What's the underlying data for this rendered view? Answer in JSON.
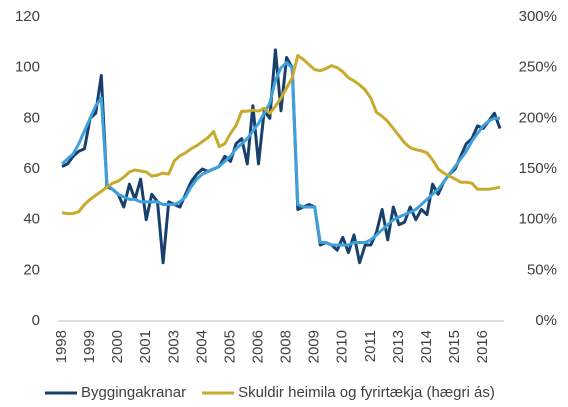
{
  "chart_data": {
    "type": "line",
    "categories": [
      "1998",
      null,
      null,
      null,
      null,
      "1999",
      null,
      null,
      null,
      null,
      "2000",
      null,
      null,
      null,
      null,
      "2001",
      null,
      null,
      null,
      null,
      "2003",
      null,
      null,
      null,
      null,
      "2004",
      null,
      null,
      null,
      null,
      "2005",
      null,
      null,
      null,
      null,
      "2006",
      null,
      null,
      null,
      null,
      "2008",
      null,
      null,
      null,
      null,
      "2009",
      null,
      null,
      null,
      null,
      "2010",
      null,
      null,
      null,
      null,
      "2011",
      null,
      null,
      null,
      null,
      "2013",
      null,
      null,
      null,
      null,
      "2014",
      null,
      null,
      null,
      null,
      "2015",
      null,
      null,
      null,
      null,
      "2016",
      null,
      null,
      null
    ],
    "series": [
      {
        "name": "Byggingakranar",
        "color": "#17406d",
        "values": [
          61,
          62,
          65,
          67,
          68,
          80,
          82,
          97,
          53,
          52,
          50,
          45,
          54,
          48,
          56,
          40,
          50,
          47,
          23,
          47,
          46,
          45,
          50,
          55,
          58,
          60,
          59,
          60,
          61,
          65,
          63,
          70,
          72,
          62,
          85,
          62,
          83,
          80,
          107,
          83,
          104,
          100,
          44,
          45,
          46,
          45,
          30,
          31,
          30,
          28,
          33,
          27,
          34,
          23,
          30,
          30,
          35,
          44,
          32,
          45,
          38,
          39,
          45,
          40,
          44,
          42,
          54,
          50,
          55,
          58,
          60,
          65,
          70,
          72,
          77,
          76,
          79,
          82,
          76
        ]
      },
      {
        "color": "#3fa0db",
        "values": [
          62,
          64,
          66,
          70,
          75,
          80,
          85,
          88,
          54,
          52,
          50,
          49,
          48,
          48,
          47,
          47,
          47,
          47,
          46,
          46,
          46,
          47,
          49,
          53,
          56,
          58,
          59,
          60,
          61,
          63,
          65,
          68,
          70,
          72,
          75,
          78,
          82,
          86,
          95,
          100,
          102,
          100,
          46,
          45,
          45,
          45,
          31,
          31,
          30,
          30,
          30,
          30,
          31,
          31,
          31,
          32,
          34,
          36,
          38,
          40,
          41,
          42,
          43,
          44,
          46,
          48,
          50,
          52,
          55,
          58,
          61,
          64,
          67,
          71,
          74,
          77,
          79,
          80,
          80
        ]
      },
      {
        "name": "Skuldir heimila og fyrirtækja (hægri ás)",
        "color": "#c8aa2c",
        "axis": "y2",
        "values": [
          107,
          106,
          106,
          108,
          115,
          120,
          124,
          128,
          132,
          136,
          138,
          142,
          147,
          149,
          148,
          147,
          143,
          144,
          146,
          145,
          158,
          163,
          166,
          170,
          173,
          177,
          181,
          187,
          172,
          175,
          185,
          193,
          207,
          207,
          208,
          207,
          210,
          205,
          212,
          220,
          230,
          240,
          262,
          258,
          253,
          248,
          247,
          249,
          252,
          250,
          246,
          240,
          237,
          233,
          228,
          220,
          206,
          202,
          197,
          190,
          183,
          176,
          171,
          169,
          168,
          166,
          159,
          150,
          146,
          143,
          140,
          137,
          137,
          136,
          130,
          130,
          130,
          131,
          132
        ]
      }
    ],
    "ylim": [
      0,
      120
    ],
    "yticks": [
      0,
      20,
      40,
      60,
      80,
      100,
      120
    ],
    "y2lim": [
      0,
      300
    ],
    "y2ticks": [
      {
        "value": 0,
        "label": "0%"
      },
      {
        "value": 50,
        "label": "50%"
      },
      {
        "value": 100,
        "label": "100%"
      },
      {
        "value": 150,
        "label": "150%"
      },
      {
        "value": 200,
        "label": "200%"
      },
      {
        "value": 250,
        "label": "250%"
      },
      {
        "value": 300,
        "label": "300%"
      }
    ],
    "grid": false
  }
}
